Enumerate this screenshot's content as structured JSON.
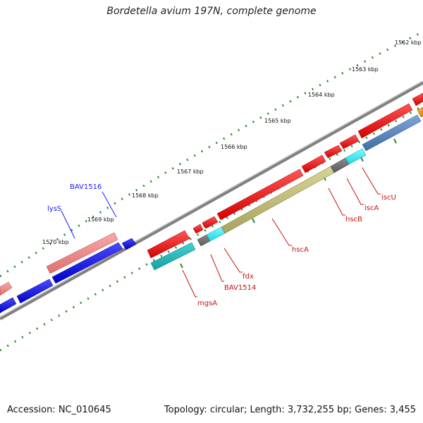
{
  "title": "Bordetella avium 197N, complete genome",
  "footer": {
    "accession": "Accession: NC_010645",
    "summary": "Topology: circular; Length: 3,732,255 bp; Genes: 3,455"
  },
  "colors": {
    "backbone": "#808080",
    "tick_dots": "#2e8b2e",
    "forward_label_color": "#1a1aff",
    "reverse_label_color": "#cc1111"
  },
  "kbp_ticks": [
    "1562 kbp",
    "1563 kbp",
    "1564 kbp",
    "1565 kbp",
    "1566 kbp",
    "1567 kbp",
    "1568 kbp",
    "1569 kbp",
    "1570 kbp"
  ],
  "gene_labels": [
    {
      "text": "BAV1516",
      "color": "#1a1aff"
    },
    {
      "text": "lysS",
      "color": "#1a1aff"
    },
    {
      "text": "iscU",
      "color": "#cc1111"
    },
    {
      "text": "iscA",
      "color": "#cc1111"
    },
    {
      "text": "hscB",
      "color": "#cc1111"
    },
    {
      "text": "hscA",
      "color": "#cc1111"
    },
    {
      "text": "fdx",
      "color": "#cc1111"
    },
    {
      "text": "BAV1514",
      "color": "#cc1111"
    },
    {
      "text": "mgsA",
      "color": "#cc1111"
    }
  ]
}
